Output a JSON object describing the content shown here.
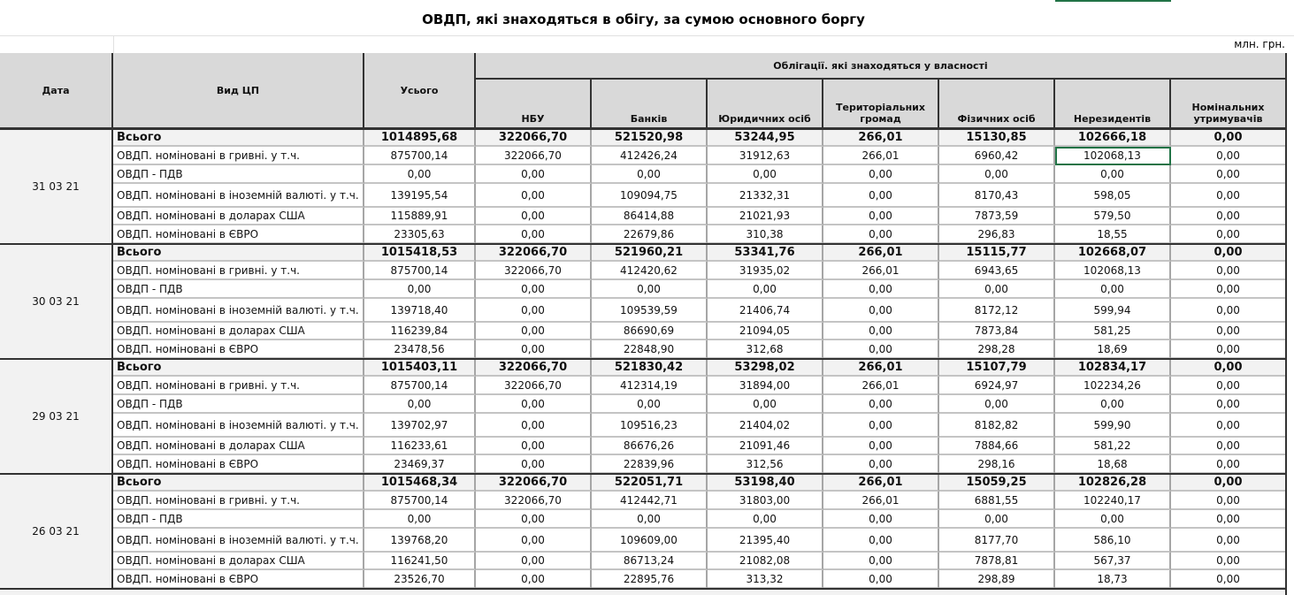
{
  "header": {
    "title": "ОВДП, які знаходяться в обігу, за сумою основного боргу",
    "unit": "млн. грн."
  },
  "table": {
    "columns": [
      "Дата",
      "Вид ЦП",
      "Усього",
      "НБУ",
      "Банків",
      "Юридичних осіб",
      "Територіальних громад",
      "Фізичних осіб",
      "Нерезидентів",
      "Номінальних утримувачів"
    ],
    "group_header": "Облігації. які знаходяться у власності",
    "groups": [
      {
        "date": "31 03 21",
        "rows": [
          [
            "Всього",
            "1014895,68",
            "322066,70",
            "521520,98",
            "53244,95",
            "266,01",
            "15130,85",
            "102666,18",
            "0,00"
          ],
          [
            "ОВДП. номіновані в гривні. у т.ч.",
            "875700,14",
            "322066,70",
            "412426,24",
            "31912,63",
            "266,01",
            "6960,42",
            "102068,13",
            "0,00"
          ],
          [
            "ОВДП - ПДВ",
            "0,00",
            "0,00",
            "0,00",
            "0,00",
            "0,00",
            "0,00",
            "0,00",
            "0,00"
          ],
          [
            "ОВДП. номіновані в іноземній валюті. у т.ч.",
            "139195,54",
            "0,00",
            "109094,75",
            "21332,31",
            "0,00",
            "8170,43",
            "598,05",
            "0,00"
          ],
          [
            "ОВДП. номіновані в доларах США",
            "115889,91",
            "0,00",
            "86414,88",
            "21021,93",
            "0,00",
            "7873,59",
            "579,50",
            "0,00"
          ],
          [
            "ОВДП. номіновані в ЄВРО",
            "23305,63",
            "0,00",
            "22679,86",
            "310,38",
            "0,00",
            "296,83",
            "18,55",
            "0,00"
          ]
        ]
      },
      {
        "date": "30 03 21",
        "rows": [
          [
            "Всього",
            "1015418,53",
            "322066,70",
            "521960,21",
            "53341,76",
            "266,01",
            "15115,77",
            "102668,07",
            "0,00"
          ],
          [
            "ОВДП. номіновані в гривні. у т.ч.",
            "875700,14",
            "322066,70",
            "412420,62",
            "31935,02",
            "266,01",
            "6943,65",
            "102068,13",
            "0,00"
          ],
          [
            "ОВДП - ПДВ",
            "0,00",
            "0,00",
            "0,00",
            "0,00",
            "0,00",
            "0,00",
            "0,00",
            "0,00"
          ],
          [
            "ОВДП. номіновані в іноземній валюті. у т.ч.",
            "139718,40",
            "0,00",
            "109539,59",
            "21406,74",
            "0,00",
            "8172,12",
            "599,94",
            "0,00"
          ],
          [
            "ОВДП. номіновані в доларах США",
            "116239,84",
            "0,00",
            "86690,69",
            "21094,05",
            "0,00",
            "7873,84",
            "581,25",
            "0,00"
          ],
          [
            "ОВДП. номіновані в ЄВРО",
            "23478,56",
            "0,00",
            "22848,90",
            "312,68",
            "0,00",
            "298,28",
            "18,69",
            "0,00"
          ]
        ]
      },
      {
        "date": "29 03 21",
        "rows": [
          [
            "Всього",
            "1015403,11",
            "322066,70",
            "521830,42",
            "53298,02",
            "266,01",
            "15107,79",
            "102834,17",
            "0,00"
          ],
          [
            "ОВДП. номіновані в гривні. у т.ч.",
            "875700,14",
            "322066,70",
            "412314,19",
            "31894,00",
            "266,01",
            "6924,97",
            "102234,26",
            "0,00"
          ],
          [
            "ОВДП - ПДВ",
            "0,00",
            "0,00",
            "0,00",
            "0,00",
            "0,00",
            "0,00",
            "0,00",
            "0,00"
          ],
          [
            "ОВДП. номіновані в іноземній валюті. у т.ч.",
            "139702,97",
            "0,00",
            "109516,23",
            "21404,02",
            "0,00",
            "8182,82",
            "599,90",
            "0,00"
          ],
          [
            "ОВДП. номіновані в доларах США",
            "116233,61",
            "0,00",
            "86676,26",
            "21091,46",
            "0,00",
            "7884,66",
            "581,22",
            "0,00"
          ],
          [
            "ОВДП. номіновані в ЄВРО",
            "23469,37",
            "0,00",
            "22839,96",
            "312,56",
            "0,00",
            "298,16",
            "18,68",
            "0,00"
          ]
        ]
      },
      {
        "date": "26 03 21",
        "rows": [
          [
            "Всього",
            "1015468,34",
            "322066,70",
            "522051,71",
            "53198,40",
            "266,01",
            "15059,25",
            "102826,28",
            "0,00"
          ],
          [
            "ОВДП. номіновані в гривні. у т.ч.",
            "875700,14",
            "322066,70",
            "412442,71",
            "31803,00",
            "266,01",
            "6881,55",
            "102240,17",
            "0,00"
          ],
          [
            "ОВДП - ПДВ",
            "0,00",
            "0,00",
            "0,00",
            "0,00",
            "0,00",
            "0,00",
            "0,00",
            "0,00"
          ],
          [
            "ОВДП. номіновані в іноземній валюті. у т.ч.",
            "139768,20",
            "0,00",
            "109609,00",
            "21395,40",
            "0,00",
            "8177,70",
            "586,10",
            "0,00"
          ],
          [
            "ОВДП. номіновані в доларах США",
            "116241,50",
            "0,00",
            "86713,24",
            "21082,08",
            "0,00",
            "7878,81",
            "567,37",
            "0,00"
          ],
          [
            "ОВДП. номіновані в ЄВРО",
            "23526,70",
            "0,00",
            "22895,76",
            "313,32",
            "0,00",
            "298,89",
            "18,73",
            "0,00"
          ]
        ]
      }
    ]
  }
}
